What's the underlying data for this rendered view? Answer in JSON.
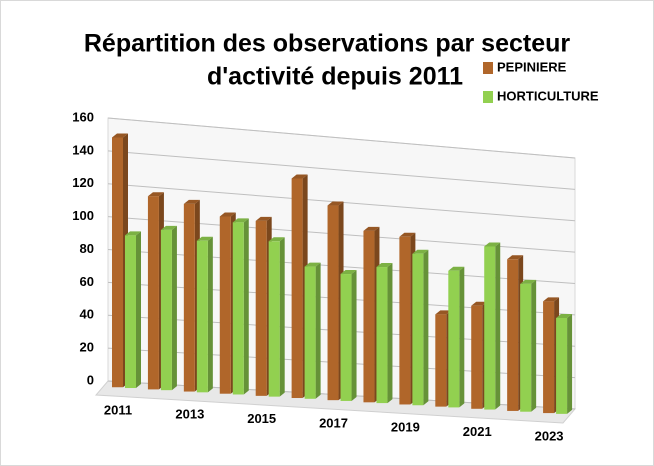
{
  "chart_data": {
    "type": "bar3d",
    "title": "Répartition des observations par secteur d'activité depuis 2011",
    "title_lines": [
      "Répartition des observations par secteur",
      "d'activité depuis 2011"
    ],
    "categories": [
      "2011",
      null,
      "2013",
      null,
      "2015",
      null,
      "2017",
      null,
      "2019",
      null,
      "2021",
      null,
      "2023"
    ],
    "series": [
      {
        "name": "PEPINIERE",
        "color": "#b0662a",
        "values": [
          152,
          118,
          115,
          109,
          108,
          136,
          121,
          107,
          105,
          58,
          65,
          96,
          71
        ]
      },
      {
        "name": "HORTICULTURE",
        "color": "#92d050",
        "values": [
          93,
          98,
          93,
          106,
          96,
          82,
          79,
          85,
          95,
          86,
          103,
          81,
          61
        ]
      }
    ],
    "ylim": [
      0,
      160
    ],
    "yticks": [
      0,
      20,
      40,
      60,
      80,
      100,
      120,
      140,
      160
    ],
    "grid": true,
    "legend": "top-right"
  }
}
